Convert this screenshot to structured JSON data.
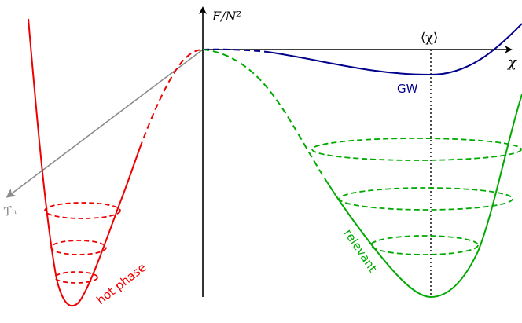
{
  "labels": {
    "y_axis": "F/N²",
    "x_axis": "χ",
    "mean_chi": "⟨χ⟩",
    "gw": "GW",
    "relevant": "relevant",
    "hot_phase": "hot phase",
    "temperature_axis": "Tₕ"
  },
  "colors": {
    "axis": "#000000",
    "gw_curve": "#00008b",
    "relevant_curve": "#00aa00",
    "hot_phase_curve": "#ee0000",
    "temperature_arrow": "#8c8c8c"
  }
}
